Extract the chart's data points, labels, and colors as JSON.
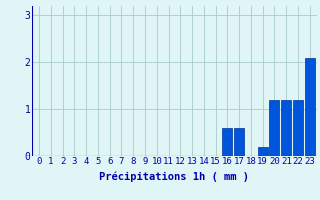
{
  "hours": [
    0,
    1,
    2,
    3,
    4,
    5,
    6,
    7,
    8,
    9,
    10,
    11,
    12,
    13,
    14,
    15,
    16,
    17,
    18,
    19,
    20,
    21,
    22,
    23
  ],
  "values": [
    0,
    0,
    0,
    0,
    0,
    0,
    0,
    0,
    0,
    0,
    0,
    0,
    0,
    0,
    0,
    0,
    0.6,
    0.6,
    0,
    0.2,
    1.2,
    1.2,
    1.2,
    2.1
  ],
  "bar_color": "#0055dd",
  "bar_edge_color": "#003399",
  "background_color": "#e0f5f5",
  "grid_color": "#aacccc",
  "tick_color": "#0000aa",
  "xlabel": "Précipitations 1h ( mm )",
  "ylim": [
    0,
    3.2
  ],
  "yticks": [
    0,
    1,
    2,
    3
  ],
  "xlabel_fontsize": 7.5,
  "tick_fontsize": 6.5
}
